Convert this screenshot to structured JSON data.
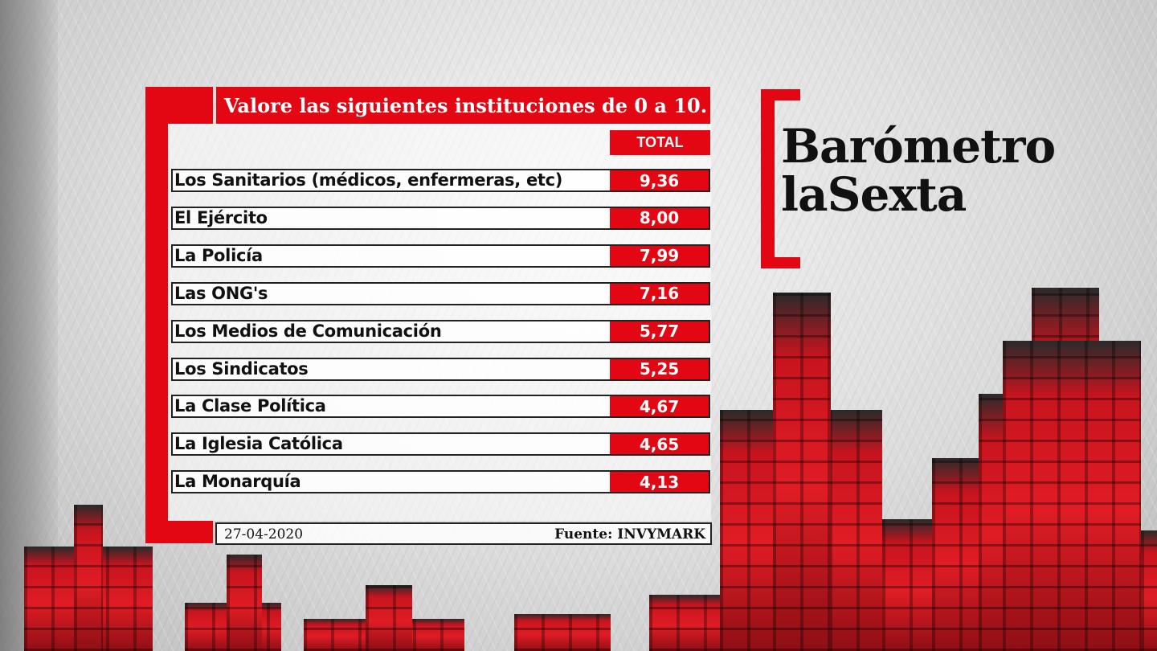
{
  "chart_data": {
    "type": "table",
    "title": "Valore las siguientes instituciones de 0 a 10.",
    "column_header": "TOTAL",
    "categories": [
      "Los Sanitarios (médicos, enfermeras, etc)",
      "El Ejército",
      "La Policía",
      "Las ONG's",
      "Los Medios de Comunicación",
      "Los Sindicatos",
      "La Clase  Política",
      "La Iglesia Católica",
      "La Monarquía"
    ],
    "values": [
      "9,36",
      "8,00",
      "7,99",
      "7,16",
      "5,77",
      "5,25",
      "4,67",
      "4,65",
      "4,13"
    ]
  },
  "footer": {
    "date": "27-04-2020",
    "source": "Fuente: INVYMARK"
  },
  "brand": {
    "line1": "Barómetro",
    "line2": "laSexta"
  },
  "colors": {
    "accent": "#e30613",
    "text": "#111111"
  }
}
